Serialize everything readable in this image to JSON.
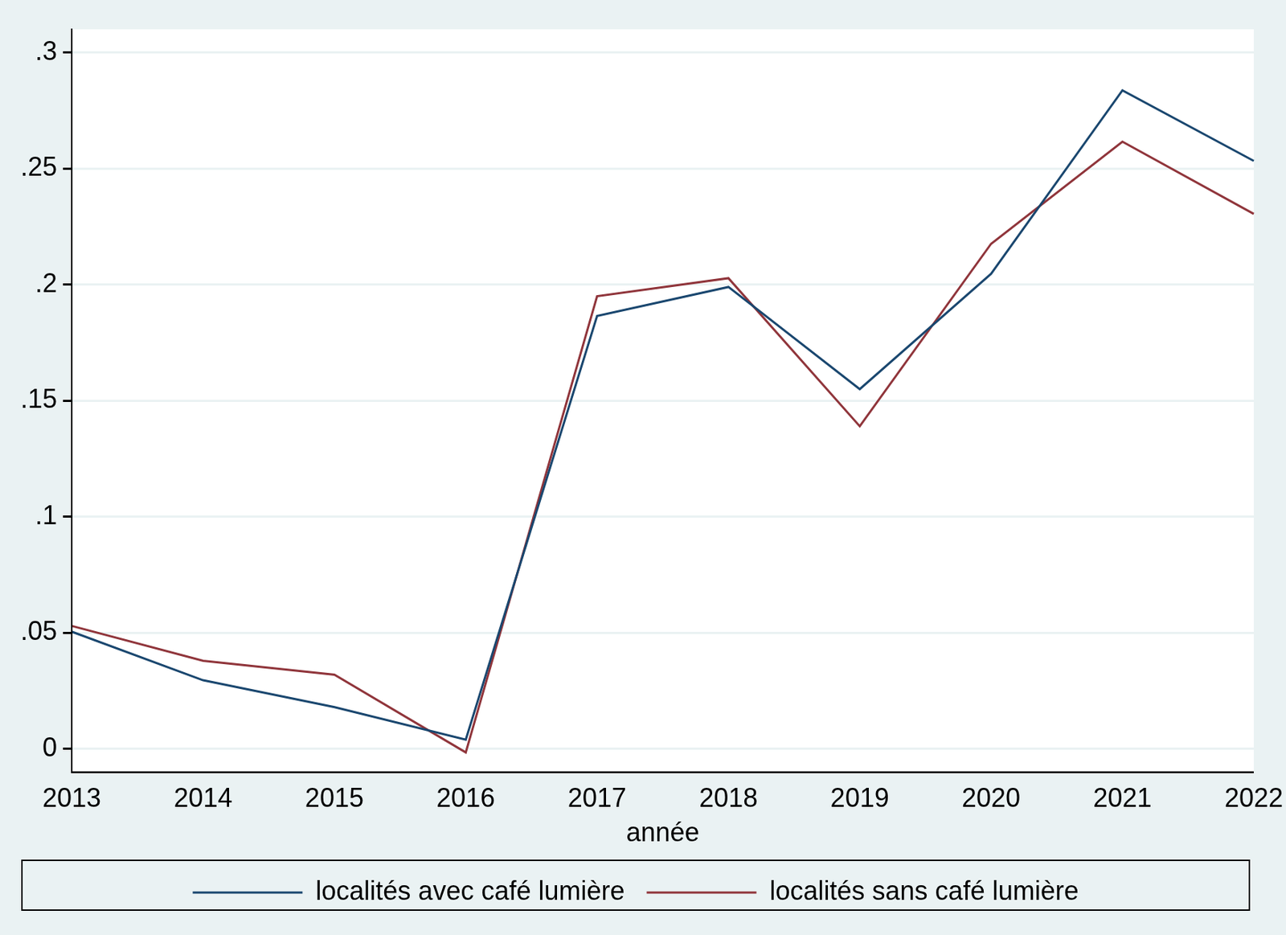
{
  "chart_data": {
    "type": "line",
    "x_label": "année",
    "categories": [
      "2013",
      "2014",
      "2015",
      "2016",
      "2017",
      "2018",
      "2019",
      "2020",
      "2021",
      "2022"
    ],
    "series": [
      {
        "name": "localités avec café lumière",
        "color": "#1a476f",
        "values": [
          0.0505,
          0.0296,
          0.018,
          0.004,
          0.1865,
          0.199,
          0.155,
          0.2047,
          0.2837,
          0.2533
        ]
      },
      {
        "name": "localités sans café lumière",
        "color": "#90353b",
        "values": [
          0.053,
          0.038,
          0.032,
          -0.0015,
          0.195,
          0.2028,
          0.139,
          0.2176,
          0.2616,
          0.2305
        ]
      }
    ],
    "ylim": [
      -0.01,
      0.31
    ],
    "yticks": [
      0,
      {
        "value": 0.05,
        "label": ".05"
      },
      {
        "value": 0.1,
        "label": ".1"
      },
      {
        "value": 0.15,
        "label": ".15"
      },
      {
        "value": 0.2,
        "label": ".2"
      },
      {
        "value": 0.25,
        "label": ".25"
      },
      {
        "value": 0.3,
        "label": ".3"
      }
    ],
    "grid": true,
    "legend": "bottom"
  }
}
